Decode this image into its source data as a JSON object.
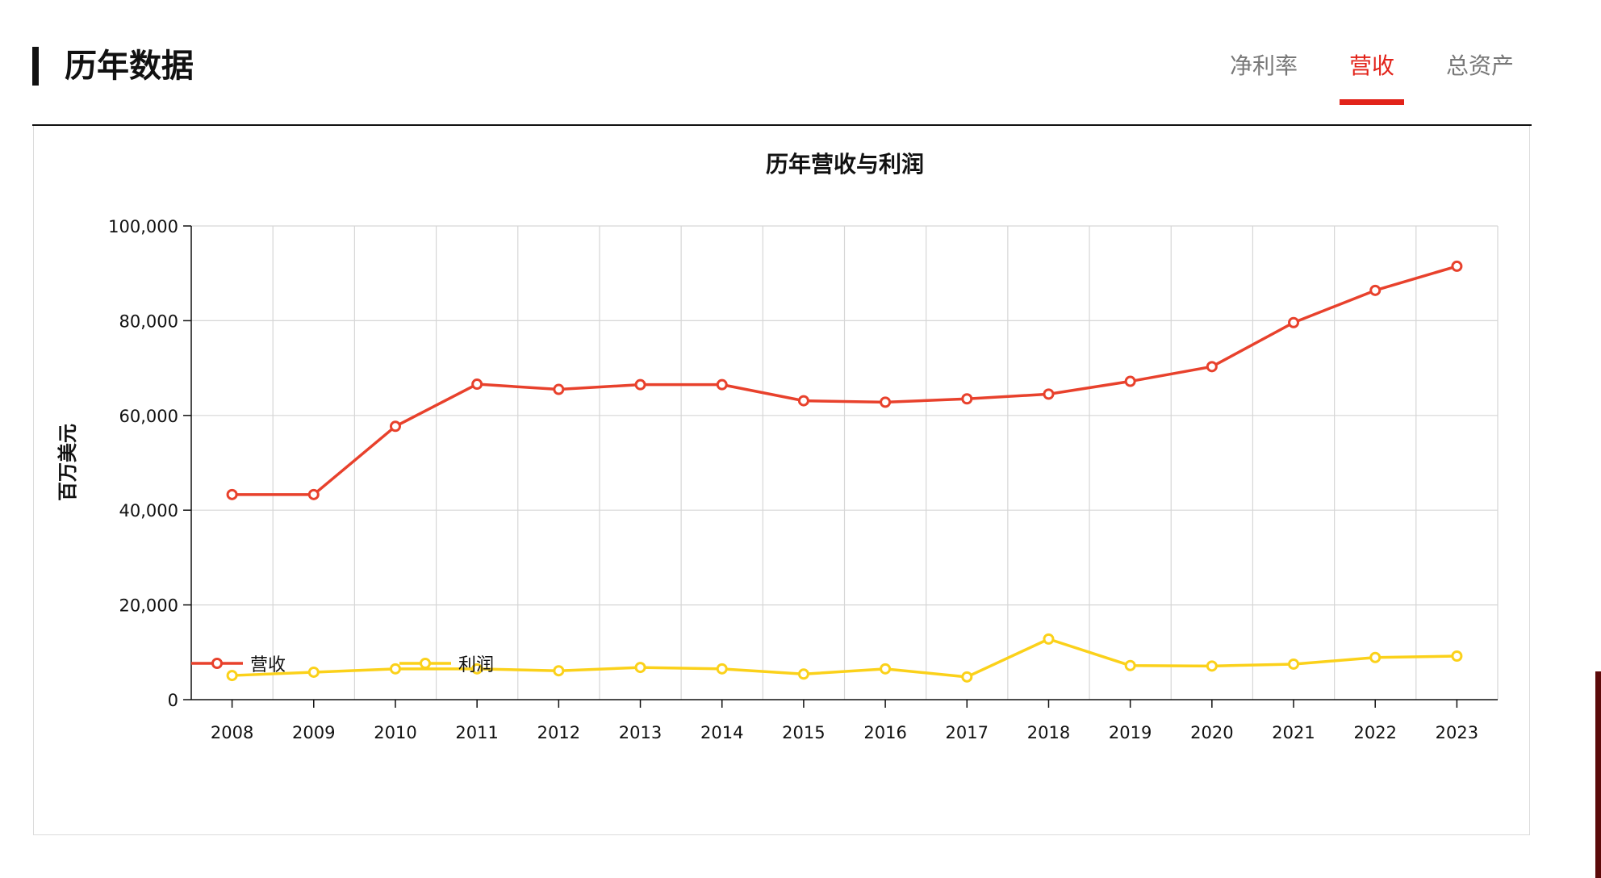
{
  "header": {
    "title": "历年数据",
    "tabs": [
      {
        "label": "净利率",
        "active": false
      },
      {
        "label": "营收",
        "active": true
      },
      {
        "label": "总资产",
        "active": false
      }
    ]
  },
  "colors": {
    "accent": "#e2231a",
    "revenue": "#e8412c",
    "profit": "#fbd11a"
  },
  "chart_data": {
    "type": "line",
    "title": "历年营收与利润",
    "ylabel": "百万美元",
    "xlabel": "",
    "x": [
      "2008",
      "2009",
      "2010",
      "2011",
      "2012",
      "2013",
      "2014",
      "2015",
      "2016",
      "2017",
      "2018",
      "2019",
      "2020",
      "2021",
      "2022",
      "2023"
    ],
    "ylim": [
      0,
      100000
    ],
    "yticks": [
      0,
      20000,
      40000,
      60000,
      80000,
      100000
    ],
    "ytick_labels": [
      "0",
      "20,000",
      "40,000",
      "60,000",
      "80,000",
      "100,000"
    ],
    "grid": true,
    "legend_position": "bottom-left",
    "series": [
      {
        "name": "营收",
        "color": "#e8412c",
        "values": [
          43300,
          43300,
          57700,
          66600,
          65500,
          66500,
          66500,
          63100,
          62800,
          63500,
          64500,
          67200,
          70300,
          79600,
          86400,
          91500
        ]
      },
      {
        "name": "利润",
        "color": "#fbd11a",
        "values": [
          5100,
          5800,
          6500,
          6500,
          6100,
          6800,
          6500,
          5400,
          6500,
          4800,
          12800,
          7200,
          7100,
          7500,
          8900,
          9200
        ]
      }
    ]
  }
}
